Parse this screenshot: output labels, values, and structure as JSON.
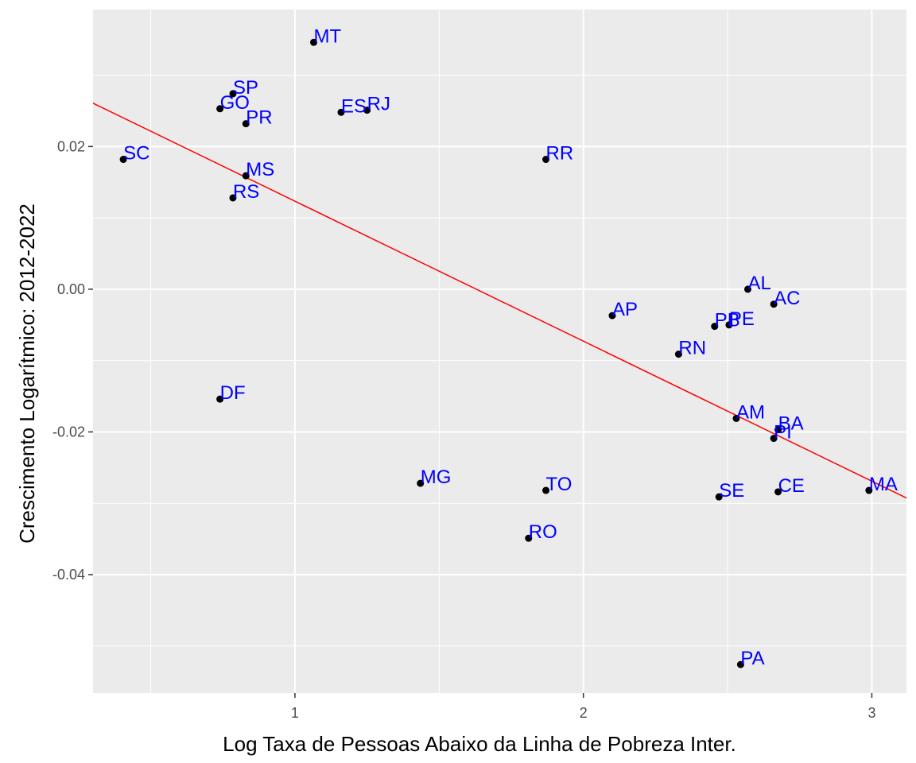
{
  "chart_data": {
    "type": "scatter",
    "title": "",
    "xlabel": "Log Taxa de Pessoas Abaixo da Linha de Pobreza Inter.",
    "ylabel": "Crescimento Logarítmico: 2012-2022",
    "xlim": [
      0.3,
      3.12
    ],
    "ylim": [
      -0.0566,
      0.0392
    ],
    "x_ticks": [
      1,
      2,
      3
    ],
    "x_tick_labels": [
      "1",
      "2",
      "3"
    ],
    "x_minor_ticks": [
      0.5,
      1.5,
      2.5
    ],
    "y_ticks": [
      0.02,
      0.0,
      -0.02,
      -0.04
    ],
    "y_tick_labels": [
      "0.02",
      "0.00",
      "-0.02",
      "-0.04"
    ],
    "y_minor_ticks": [
      0.03,
      0.01,
      -0.01,
      -0.03,
      -0.05
    ],
    "grid": true,
    "panel_background": "#ebebeb",
    "grid_color": "#ffffff",
    "point_color": "#000000",
    "label_color": "#0000ff",
    "trendline_color": "#ff0000",
    "trendline": {
      "slope": -0.01962,
      "intercept": 0.03196
    },
    "points": [
      {
        "label": "MT",
        "x": 1.065,
        "y": 0.0346
      },
      {
        "label": "SP",
        "x": 0.785,
        "y": 0.0274
      },
      {
        "label": "GO",
        "x": 0.74,
        "y": 0.0253
      },
      {
        "label": "PR",
        "x": 0.83,
        "y": 0.0232
      },
      {
        "label": "ES",
        "x": 1.16,
        "y": 0.0248
      },
      {
        "label": "RJ",
        "x": 1.25,
        "y": 0.0251
      },
      {
        "label": "SC",
        "x": 0.405,
        "y": 0.0182
      },
      {
        "label": "RR",
        "x": 1.87,
        "y": 0.0182
      },
      {
        "label": "MS",
        "x": 0.83,
        "y": 0.0159
      },
      {
        "label": "RS",
        "x": 0.785,
        "y": 0.0128
      },
      {
        "label": "AL",
        "x": 2.57,
        "y": 0.0
      },
      {
        "label": "AC",
        "x": 2.66,
        "y": -0.0021
      },
      {
        "label": "AP",
        "x": 2.1,
        "y": -0.0037
      },
      {
        "label": "PB",
        "x": 2.455,
        "y": -0.0052
      },
      {
        "label": "PE",
        "x": 2.505,
        "y": -0.005
      },
      {
        "label": "RN",
        "x": 2.33,
        "y": -0.0091
      },
      {
        "label": "DF",
        "x": 0.74,
        "y": -0.0154
      },
      {
        "label": "AM",
        "x": 2.53,
        "y": -0.0181
      },
      {
        "label": "BA",
        "x": 2.675,
        "y": -0.0197
      },
      {
        "label": "PI",
        "x": 2.66,
        "y": -0.0209
      },
      {
        "label": "MG",
        "x": 1.435,
        "y": -0.0272
      },
      {
        "label": "TO",
        "x": 1.87,
        "y": -0.0282
      },
      {
        "label": "SE",
        "x": 2.47,
        "y": -0.0291
      },
      {
        "label": "CE",
        "x": 2.675,
        "y": -0.0284
      },
      {
        "label": "MA",
        "x": 2.99,
        "y": -0.0282
      },
      {
        "label": "RO",
        "x": 1.81,
        "y": -0.0349
      },
      {
        "label": "PA",
        "x": 2.545,
        "y": -0.0526
      }
    ]
  }
}
